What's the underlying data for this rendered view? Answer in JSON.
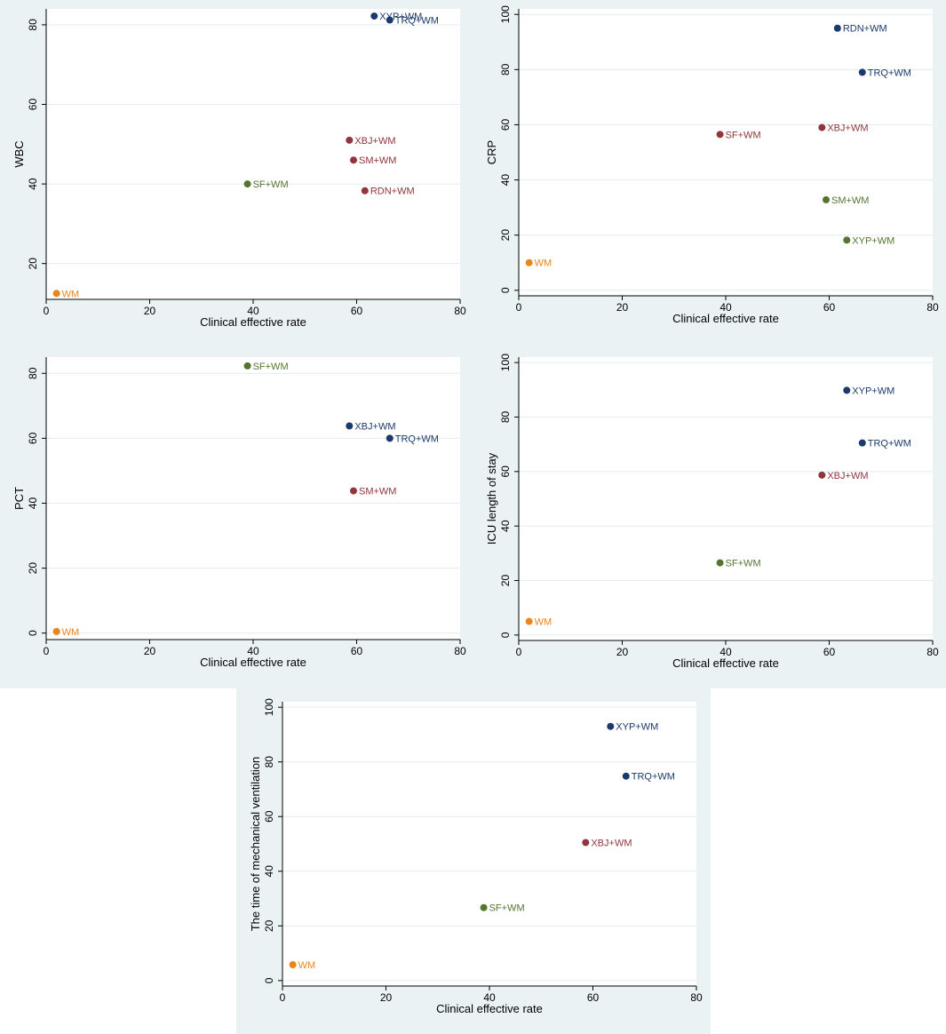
{
  "colors": {
    "panel_background": "#eaf2f3",
    "plot_background": "#ffffff",
    "grid": "#e3ecee",
    "navy": "#1a3a6b",
    "maroon": "#90353b",
    "olive": "#55752f",
    "orange": "#e8851e"
  },
  "chart_data": [
    {
      "type": "scatter",
      "title": "",
      "xlabel": "Clinical effective rate",
      "ylabel": "WBC",
      "xlim": [
        0,
        80
      ],
      "ylim": [
        11,
        84
      ],
      "xticks": [
        0,
        20,
        40,
        60,
        80
      ],
      "yticks": [
        20,
        40,
        60,
        80
      ],
      "grid": true,
      "legend": "none",
      "points": [
        {
          "label": "XYP+WM",
          "x": 63.4,
          "y": 82.2,
          "color": "navy"
        },
        {
          "label": "TRQ+WM",
          "x": 66.4,
          "y": 81.2,
          "color": "navy"
        },
        {
          "label": "XBJ+WM",
          "x": 58.6,
          "y": 51.0,
          "color": "maroon"
        },
        {
          "label": "SM+WM",
          "x": 59.4,
          "y": 46.0,
          "color": "maroon"
        },
        {
          "label": "RDN+WM",
          "x": 61.6,
          "y": 38.3,
          "color": "maroon"
        },
        {
          "label": "SF+WM",
          "x": 38.9,
          "y": 40.0,
          "color": "olive"
        },
        {
          "label": "WM",
          "x": 2.0,
          "y": 12.5,
          "color": "orange"
        }
      ]
    },
    {
      "type": "scatter",
      "title": "",
      "xlabel": "Clinical effective rate",
      "ylabel": "CRP",
      "xlim": [
        0,
        80
      ],
      "ylim": [
        -2,
        102
      ],
      "xticks": [
        0,
        20,
        40,
        60,
        80
      ],
      "yticks": [
        0,
        20,
        40,
        60,
        80,
        100
      ],
      "grid": true,
      "legend": "none",
      "points": [
        {
          "label": "RDN+WM",
          "x": 61.6,
          "y": 95.0,
          "color": "navy"
        },
        {
          "label": "TRQ+WM",
          "x": 66.4,
          "y": 79.0,
          "color": "navy"
        },
        {
          "label": "XBJ+WM",
          "x": 58.6,
          "y": 59.0,
          "color": "maroon"
        },
        {
          "label": "SF+WM",
          "x": 38.9,
          "y": 56.5,
          "color": "maroon"
        },
        {
          "label": "SM+WM",
          "x": 59.4,
          "y": 32.8,
          "color": "olive"
        },
        {
          "label": "XYP+WM",
          "x": 63.4,
          "y": 18.2,
          "color": "olive"
        },
        {
          "label": "WM",
          "x": 2.0,
          "y": 10.0,
          "color": "orange"
        }
      ]
    },
    {
      "type": "scatter",
      "title": "",
      "xlabel": "Clinical effective rate",
      "ylabel": "PCT",
      "xlim": [
        0,
        80
      ],
      "ylim": [
        -2,
        85
      ],
      "xticks": [
        0,
        20,
        40,
        60,
        80
      ],
      "yticks": [
        0,
        20,
        40,
        60,
        80
      ],
      "grid": true,
      "legend": "none",
      "points": [
        {
          "label": "SF+WM",
          "x": 38.9,
          "y": 82.3,
          "color": "olive"
        },
        {
          "label": "XBJ+WM",
          "x": 58.6,
          "y": 63.8,
          "color": "navy"
        },
        {
          "label": "TRQ+WM",
          "x": 66.4,
          "y": 60.0,
          "color": "navy"
        },
        {
          "label": "SM+WM",
          "x": 59.4,
          "y": 43.8,
          "color": "maroon"
        },
        {
          "label": "WM",
          "x": 2.0,
          "y": 0.5,
          "color": "orange"
        }
      ]
    },
    {
      "type": "scatter",
      "title": "",
      "xlabel": "Clinical effective rate",
      "ylabel": "ICU length of stay",
      "xlim": [
        0,
        80
      ],
      "ylim": [
        -2,
        102
      ],
      "xticks": [
        0,
        20,
        40,
        60,
        80
      ],
      "yticks": [
        0,
        20,
        40,
        60,
        80,
        100
      ],
      "grid": true,
      "legend": "none",
      "points": [
        {
          "label": "XYP+WM",
          "x": 63.4,
          "y": 89.8,
          "color": "navy"
        },
        {
          "label": "TRQ+WM",
          "x": 66.4,
          "y": 70.5,
          "color": "navy"
        },
        {
          "label": "XBJ+WM",
          "x": 58.6,
          "y": 58.7,
          "color": "maroon"
        },
        {
          "label": "SF+WM",
          "x": 38.9,
          "y": 26.5,
          "color": "olive"
        },
        {
          "label": "WM",
          "x": 2.0,
          "y": 5.0,
          "color": "orange"
        }
      ]
    },
    {
      "type": "scatter",
      "title": "",
      "xlabel": "Clinical effective rate",
      "ylabel": "The time of mechanical ventilation",
      "xlim": [
        0,
        80
      ],
      "ylim": [
        -2,
        102
      ],
      "xticks": [
        0,
        20,
        40,
        60,
        80
      ],
      "yticks": [
        0,
        20,
        40,
        60,
        80,
        100
      ],
      "grid": true,
      "legend": "none",
      "points": [
        {
          "label": "XYP+WM",
          "x": 63.4,
          "y": 93.0,
          "color": "navy"
        },
        {
          "label": "TRQ+WM",
          "x": 66.4,
          "y": 74.8,
          "color": "navy"
        },
        {
          "label": "XBJ+WM",
          "x": 58.6,
          "y": 50.5,
          "color": "maroon"
        },
        {
          "label": "SF+WM",
          "x": 38.9,
          "y": 26.7,
          "color": "olive"
        },
        {
          "label": "WM",
          "x": 2.0,
          "y": 5.8,
          "color": "orange"
        }
      ]
    }
  ]
}
